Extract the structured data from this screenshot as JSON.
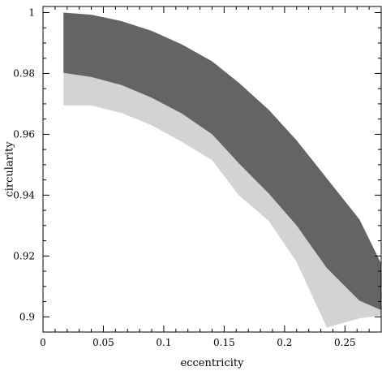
{
  "chart_data": {
    "type": "area",
    "title": "",
    "xlabel": "eccentricity",
    "ylabel": "circularity",
    "xlim": [
      0,
      0.28
    ],
    "ylim": [
      0.895,
      1.002
    ],
    "xticks": [
      0,
      0.05,
      0.1,
      0.15,
      0.2,
      0.25
    ],
    "xtick_labels": [
      "0",
      "0.05",
      "0.1",
      "0.15",
      "0.2",
      "0.25"
    ],
    "yticks": [
      0.9,
      0.92,
      0.94,
      0.96,
      0.98,
      1
    ],
    "ytick_labels": [
      "0.9",
      "0.92",
      "0.94",
      "0.96",
      "0.98",
      "1"
    ],
    "grid": false,
    "bands": [
      {
        "color": "#d3d3d3",
        "upper": {
          "x": [
            0.017,
            0.04,
            0.065,
            0.09,
            0.115,
            0.14,
            0.162,
            0.187,
            0.21,
            0.235,
            0.262,
            0.28
          ],
          "y": [
            0.9802,
            0.9788,
            0.9762,
            0.972,
            0.9668,
            0.96,
            0.9505,
            0.9405,
            0.93,
            0.916,
            0.9053,
            0.9022
          ]
        },
        "lower": {
          "x": [
            0.017,
            0.04,
            0.065,
            0.09,
            0.115,
            0.14,
            0.162,
            0.187,
            0.21,
            0.235,
            0.262,
            0.28
          ],
          "y": [
            0.9695,
            0.9695,
            0.967,
            0.963,
            0.9575,
            0.9515,
            0.94,
            0.9315,
            0.918,
            0.8965,
            0.8995,
            0.9005
          ]
        }
      },
      {
        "color": "#646464",
        "upper": {
          "x": [
            0.017,
            0.04,
            0.065,
            0.09,
            0.115,
            0.14,
            0.162,
            0.187,
            0.21,
            0.235,
            0.262,
            0.28
          ],
          "y": [
            1.0,
            0.9993,
            0.9972,
            0.994,
            0.9895,
            0.984,
            0.977,
            0.968,
            0.958,
            0.9455,
            0.932,
            0.9175
          ]
        },
        "lower": {
          "x": [
            0.017,
            0.04,
            0.065,
            0.09,
            0.115,
            0.14,
            0.162,
            0.187,
            0.21,
            0.235,
            0.262,
            0.28
          ],
          "y": [
            0.9802,
            0.9788,
            0.9762,
            0.972,
            0.9668,
            0.96,
            0.9505,
            0.9405,
            0.93,
            0.916,
            0.9053,
            0.9022
          ]
        }
      }
    ]
  }
}
